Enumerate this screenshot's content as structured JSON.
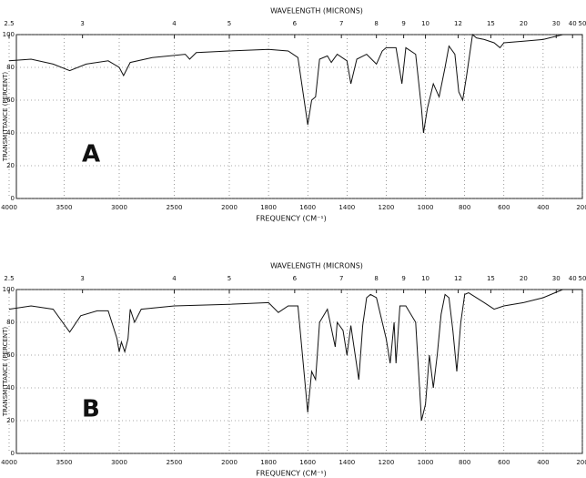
{
  "chart_data": [
    {
      "type": "line",
      "panel_label": "A",
      "title": "WAVELENGTH (MICRONS)",
      "x_label": "FREQUENCY (CM⁻¹)",
      "y_label": "TRANSMITTANCE (PERCENT)",
      "xlim": [
        4000,
        200
      ],
      "x_scale_break": 2000,
      "ylim": [
        0,
        100
      ],
      "xticks": [
        4000,
        3500,
        3000,
        2500,
        2000,
        1800,
        1600,
        1400,
        1200,
        1000,
        800,
        600,
        400,
        200
      ],
      "yticks": [
        0,
        20,
        40,
        60,
        80,
        100
      ],
      "x2ticks": [
        2.5,
        3,
        4,
        5,
        6,
        7,
        8,
        9,
        10,
        12,
        15,
        20,
        30,
        40,
        50
      ],
      "grid": true,
      "color": "#111111",
      "x": [
        4000,
        3800,
        3600,
        3450,
        3300,
        3100,
        3000,
        2960,
        2900,
        2700,
        2400,
        2360,
        2300,
        2000,
        1800,
        1700,
        1650,
        1600,
        1580,
        1560,
        1540,
        1500,
        1480,
        1450,
        1400,
        1380,
        1350,
        1300,
        1250,
        1220,
        1200,
        1150,
        1120,
        1100,
        1050,
        1020,
        1010,
        990,
        960,
        930,
        900,
        880,
        850,
        830,
        810,
        790,
        760,
        740,
        700,
        650,
        620,
        600,
        500,
        400,
        300,
        200
      ],
      "values": [
        84,
        85,
        82,
        78,
        82,
        84,
        80,
        75,
        83,
        86,
        88,
        85,
        89,
        90,
        91,
        90,
        86,
        45,
        60,
        62,
        85,
        87,
        83,
        88,
        84,
        70,
        85,
        88,
        82,
        90,
        92,
        92,
        70,
        92,
        88,
        55,
        40,
        55,
        70,
        62,
        80,
        93,
        88,
        65,
        60,
        75,
        100,
        98,
        97,
        95,
        92,
        95,
        96,
        97,
        100,
        100
      ]
    },
    {
      "type": "line",
      "panel_label": "B",
      "title": "WAVELENGTH (MICRONS)",
      "x_label": "FREQUENCY (CM⁻¹)",
      "y_label": "TRANSMITTANCE (PERCENT)",
      "xlim": [
        4000,
        200
      ],
      "x_scale_break": 2000,
      "ylim": [
        0,
        100
      ],
      "xticks": [
        4000,
        3500,
        3000,
        2500,
        2000,
        1800,
        1600,
        1400,
        1200,
        1000,
        800,
        600,
        400,
        200
      ],
      "yticks": [
        0,
        20,
        40,
        60,
        80,
        100
      ],
      "x2ticks": [
        2.5,
        3,
        4,
        5,
        6,
        7,
        8,
        9,
        10,
        12,
        15,
        20,
        30,
        40,
        50
      ],
      "grid": true,
      "color": "#111111",
      "x": [
        4000,
        3800,
        3600,
        3450,
        3350,
        3200,
        3100,
        3020,
        3000,
        2980,
        2950,
        2920,
        2900,
        2860,
        2800,
        2500,
        2000,
        1800,
        1750,
        1700,
        1650,
        1600,
        1580,
        1560,
        1540,
        1500,
        1460,
        1450,
        1420,
        1400,
        1380,
        1340,
        1320,
        1300,
        1280,
        1250,
        1200,
        1180,
        1160,
        1150,
        1130,
        1100,
        1050,
        1030,
        1020,
        1000,
        980,
        960,
        940,
        920,
        900,
        880,
        860,
        840,
        820,
        800,
        780,
        700,
        650,
        600,
        500,
        400,
        300,
        200
      ],
      "values": [
        88,
        90,
        88,
        74,
        84,
        87,
        87,
        70,
        62,
        68,
        62,
        70,
        88,
        80,
        88,
        90,
        91,
        92,
        86,
        90,
        90,
        25,
        50,
        45,
        80,
        88,
        65,
        80,
        75,
        60,
        78,
        45,
        78,
        95,
        97,
        95,
        70,
        55,
        80,
        55,
        90,
        90,
        80,
        40,
        20,
        30,
        60,
        40,
        60,
        85,
        97,
        95,
        75,
        50,
        80,
        97,
        98,
        92,
        88,
        90,
        92,
        95,
        100,
        100
      ]
    }
  ]
}
